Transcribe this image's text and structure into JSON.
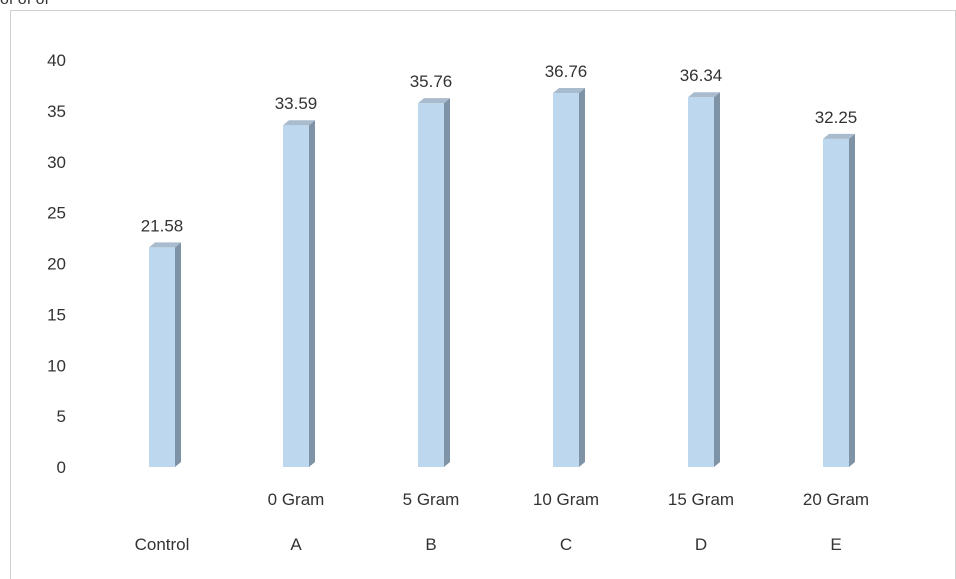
{
  "clipped_text": "of  of  of",
  "colors": {
    "bar_front": "#bdd7ee",
    "bar_side": "#7f93a6",
    "bar_top": "#a9bccd",
    "border": "#d0d0d0",
    "text": "#333333"
  },
  "chart_data": {
    "type": "bar",
    "style": "3d-column",
    "categories": [
      "Control",
      "A",
      "B",
      "C",
      "D",
      "E"
    ],
    "sub_labels": [
      "",
      "0 Gram",
      "5 Gram",
      "10 Gram",
      "15 Gram",
      "20 Gram"
    ],
    "values": [
      21.58,
      33.59,
      35.76,
      36.76,
      36.34,
      32.25
    ],
    "value_labels": [
      "21.58",
      "33.59",
      "35.76",
      "36.76",
      "36.34",
      "32.25"
    ],
    "yticks": [
      "0",
      "5",
      "10",
      "15",
      "20",
      "25",
      "30",
      "35",
      "40"
    ],
    "ylim": [
      0,
      40
    ],
    "grid": false,
    "legend": "none"
  }
}
